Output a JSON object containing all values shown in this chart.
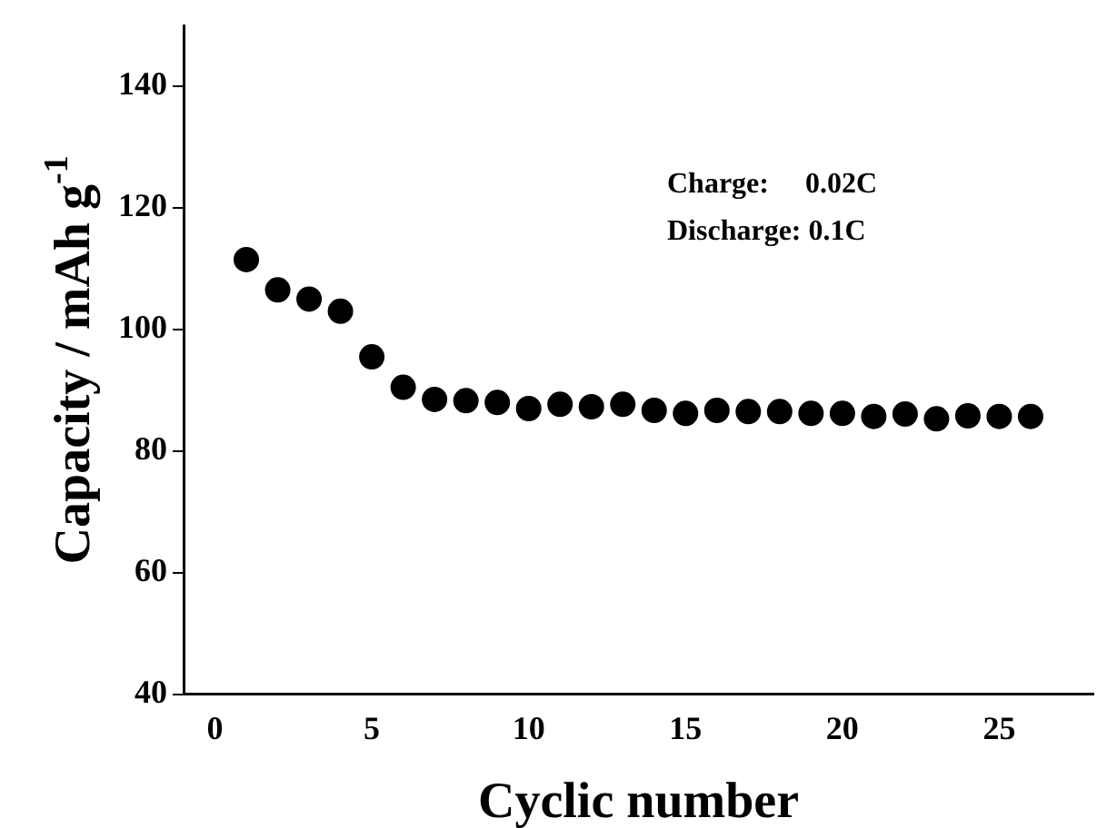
{
  "chart_data": {
    "type": "scatter",
    "xlabel": "Cyclic number",
    "ylabel": "Capacity / mAh g$^{-1}$",
    "x": [
      1,
      2,
      3,
      4,
      5,
      6,
      7,
      8,
      9,
      10,
      11,
      12,
      13,
      14,
      15,
      16,
      17,
      18,
      19,
      20,
      21,
      22,
      23,
      24,
      25,
      26
    ],
    "series": [
      {
        "color": "#000000",
        "values": [
          111.5,
          106.5,
          105,
          103,
          95.5,
          90.5,
          88.5,
          88.3,
          88,
          87,
          87.7,
          87.3,
          87.7,
          86.7,
          86.2,
          86.7,
          86.5,
          86.5,
          86.2,
          86.2,
          85.7,
          86.1,
          85.3,
          85.8,
          85.7,
          85.7
        ]
      }
    ],
    "xlim": [
      -1,
      28
    ],
    "xticks": [
      0,
      5,
      10,
      15,
      20,
      25
    ],
    "ylim": [
      40,
      150
    ],
    "yticks": [
      40,
      60,
      80,
      100,
      120,
      140
    ],
    "marker": "circle",
    "grid": false,
    "legend": false,
    "annotations": [
      "Charge:     0.02C",
      "Discharge: 0.1C"
    ]
  }
}
